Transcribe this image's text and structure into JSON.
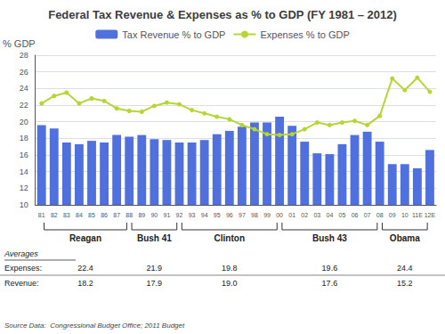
{
  "chart_data": {
    "type": "bar",
    "title": "Federal Tax Revenue & Expenses as % to GDP (FY 1981 – 2012)",
    "ylabel": "% GDP",
    "categories": [
      "81",
      "82",
      "83",
      "84",
      "85",
      "86",
      "87",
      "88",
      "89",
      "90",
      "91",
      "92",
      "93",
      "94",
      "95",
      "96",
      "97",
      "98",
      "99",
      "00",
      "01",
      "02",
      "03",
      "04",
      "05",
      "06",
      "07",
      "08",
      "09",
      "10",
      "11E",
      "12E"
    ],
    "series": [
      {
        "name": "Tax Revenue % to GDP",
        "type": "bar",
        "values": [
          19.6,
          19.2,
          17.5,
          17.3,
          17.7,
          17.5,
          18.4,
          18.2,
          18.4,
          17.9,
          17.8,
          17.5,
          17.5,
          17.8,
          18.5,
          18.9,
          19.4,
          19.9,
          19.9,
          20.6,
          19.5,
          17.6,
          16.2,
          16.1,
          17.3,
          18.4,
          18.8,
          17.6,
          14.9,
          14.9,
          14.4,
          16.6
        ]
      },
      {
        "name": "Expenses % to GDP",
        "type": "line",
        "marker": "circle",
        "values": [
          22.2,
          23.1,
          23.5,
          22.2,
          22.8,
          22.5,
          21.6,
          21.3,
          21.2,
          21.9,
          22.3,
          22.1,
          21.4,
          21.0,
          20.6,
          20.3,
          19.6,
          19.1,
          18.5,
          18.4,
          18.5,
          19.1,
          19.9,
          19.6,
          19.9,
          20.1,
          19.6,
          20.7,
          25.2,
          23.8,
          25.3,
          23.6
        ]
      }
    ],
    "ylim": [
      10,
      28
    ],
    "yticks": [
      10,
      12,
      14,
      16,
      18,
      20,
      22,
      24,
      26,
      28
    ],
    "grid": true,
    "legend": "top",
    "periods": [
      {
        "label": "Reagan",
        "start": "81",
        "end": "88"
      },
      {
        "label": "Bush 41",
        "start": "88",
        "end": "92"
      },
      {
        "label": "Clinton",
        "start": "92",
        "end": "00"
      },
      {
        "label": "Bush 43",
        "start": "00",
        "end": "08"
      },
      {
        "label": "Obama",
        "start": "08",
        "end": "12E"
      }
    ],
    "averages": {
      "title": "Averages",
      "rows": [
        {
          "label": "Expenses:",
          "values": [
            22.4,
            21.9,
            19.8,
            19.6,
            24.4
          ],
          "value_labels": [
            "22.4",
            "21.9",
            "19.8",
            "19.6",
            "24.4"
          ]
        },
        {
          "label": "Revenue:",
          "values": [
            18.2,
            17.9,
            19.0,
            17.6,
            15.2
          ],
          "value_labels": [
            "18.2",
            "17.9",
            "19.0",
            "17.6",
            "15.2"
          ]
        }
      ]
    },
    "source": "Source Data:  Congressional Budget Office; 2011 Budget"
  }
}
